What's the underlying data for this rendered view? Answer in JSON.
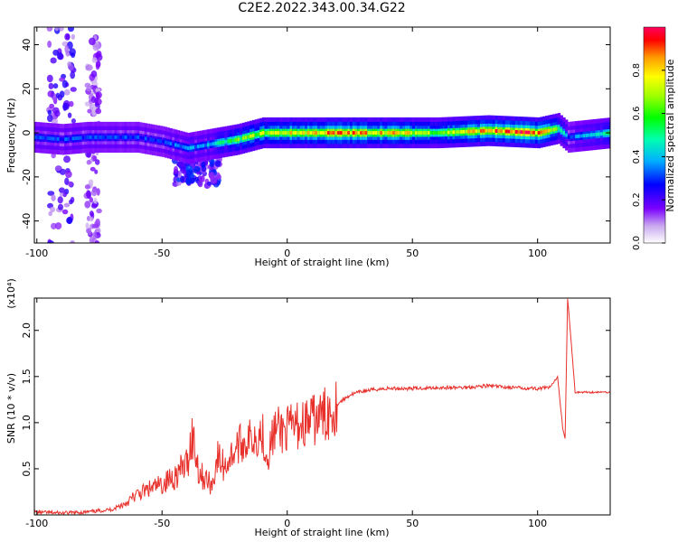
{
  "title": "C2E2.2022.343.00.34.G22",
  "chart_data": [
    {
      "type": "heatmap",
      "title": "C2E2.2022.343.00.34.G22",
      "xlabel": "Height of straight line (km)",
      "ylabel": "Frequency (Hz)",
      "xlim": [
        -101,
        129
      ],
      "ylim": [
        -50,
        48
      ],
      "x_ticks": [
        -100,
        -50,
        0,
        50,
        100
      ],
      "y_ticks": [
        -40,
        -20,
        0,
        20,
        40
      ],
      "colorbar": {
        "label": "Normalized spectral amplitude",
        "range": [
          0,
          1
        ],
        "ticks": [
          0.0,
          0.2,
          0.4,
          0.6,
          0.8
        ],
        "tick_labels": [
          "0.0",
          "0.2",
          "0.4",
          "0.6",
          "0.8"
        ]
      },
      "ridge": {
        "x": [
          -101,
          -90,
          -80,
          -70,
          -60,
          -50,
          -40,
          -30,
          -20,
          -10,
          0,
          20,
          40,
          60,
          80,
          100,
          108,
          112,
          129
        ],
        "frequency": [
          -2,
          -3,
          -2,
          -2,
          -2,
          -4,
          -7,
          -5,
          -3,
          0,
          0,
          0,
          0,
          0,
          1,
          0,
          2,
          -2,
          0
        ],
        "peak_amplitude": [
          0.3,
          0.3,
          0.3,
          0.3,
          0.3,
          0.3,
          0.35,
          0.4,
          0.6,
          0.7,
          0.75,
          0.85,
          0.8,
          0.65,
          0.85,
          0.9,
          0.6,
          0.3,
          0.5
        ]
      },
      "scatter_clusters": [
        {
          "x_range": [
            -95,
            -85
          ],
          "frequency_range": [
            -50,
            48
          ],
          "amplitude": 0.2
        },
        {
          "x_range": [
            -80,
            -75
          ],
          "frequency_range": [
            -50,
            45
          ],
          "amplitude": 0.15
        },
        {
          "x_range": [
            -45,
            -27
          ],
          "frequency_range": [
            -24,
            -12
          ],
          "amplitude": 0.25
        }
      ]
    },
    {
      "type": "line",
      "xlabel": "Height of straight line (km)",
      "ylabel": "SNR (10 * v/v)",
      "multiplier_label": "(x10⁴)",
      "xlim": [
        -101,
        129
      ],
      "ylim": [
        0,
        2.35
      ],
      "x_ticks": [
        -100,
        -50,
        0,
        50,
        100
      ],
      "y_ticks": [
        0.5,
        1.0,
        1.5,
        2.0
      ],
      "y_tick_labels": [
        "0.5",
        "1.0",
        "1.5",
        "2.0"
      ],
      "color": "#e8302b",
      "series": [
        {
          "x": [
            -101,
            -90,
            -80,
            -70,
            -65,
            -60,
            -55,
            -50,
            -45,
            -40,
            -38,
            -35,
            -30,
            -28,
            -25,
            -20,
            -15,
            -10,
            -8,
            -5,
            0,
            5,
            10,
            15,
            20,
            25,
            30,
            35,
            40,
            50,
            60,
            70,
            80,
            90,
            100,
            105,
            108,
            110,
            111,
            112,
            115,
            120,
            129
          ],
          "y": [
            0.03,
            0.02,
            0.03,
            0.06,
            0.12,
            0.22,
            0.28,
            0.33,
            0.42,
            0.55,
            0.88,
            0.45,
            0.32,
            0.62,
            0.52,
            0.75,
            0.82,
            0.9,
            0.62,
            0.92,
            0.92,
            0.98,
            1.02,
            1.08,
            1.2,
            1.3,
            1.34,
            1.36,
            1.37,
            1.37,
            1.38,
            1.38,
            1.4,
            1.38,
            1.37,
            1.38,
            1.5,
            0.95,
            0.82,
            2.35,
            1.33,
            1.33,
            1.33
          ]
        }
      ]
    }
  ]
}
